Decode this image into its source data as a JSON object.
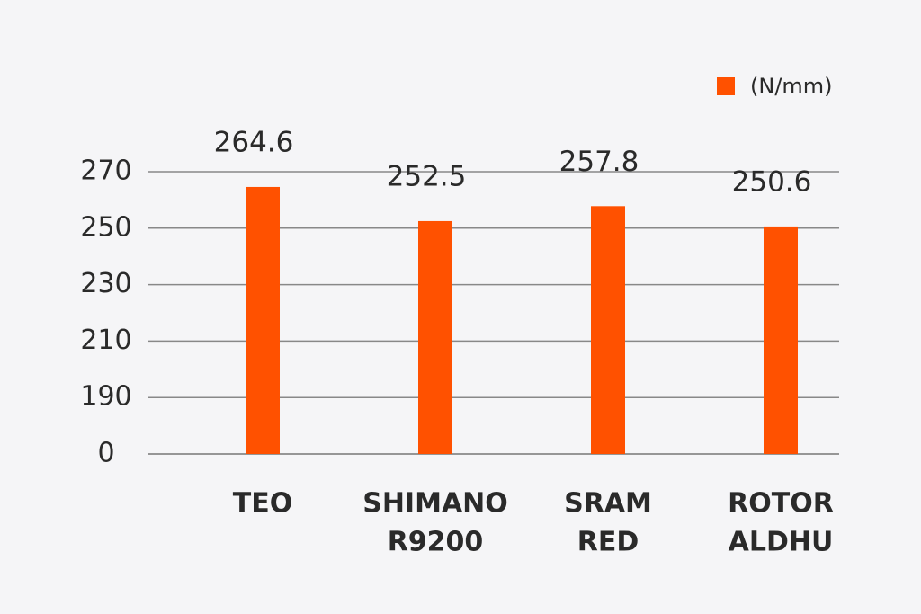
{
  "chart_data": {
    "type": "bar",
    "categories": [
      [
        "TEO"
      ],
      [
        "SHIMANO",
        "R9200"
      ],
      [
        "SRAM",
        "RED"
      ],
      [
        "ROTOR",
        "ALDHU"
      ]
    ],
    "series": [
      {
        "name": "(N/mm)",
        "color": "#ff5100",
        "values": [
          264.6,
          252.5,
          257.8,
          250.6
        ]
      }
    ],
    "ylim": [
      0,
      270
    ],
    "yticks": [
      0,
      190,
      210,
      230,
      250,
      270
    ],
    "grid": true,
    "legend": "top-right"
  }
}
